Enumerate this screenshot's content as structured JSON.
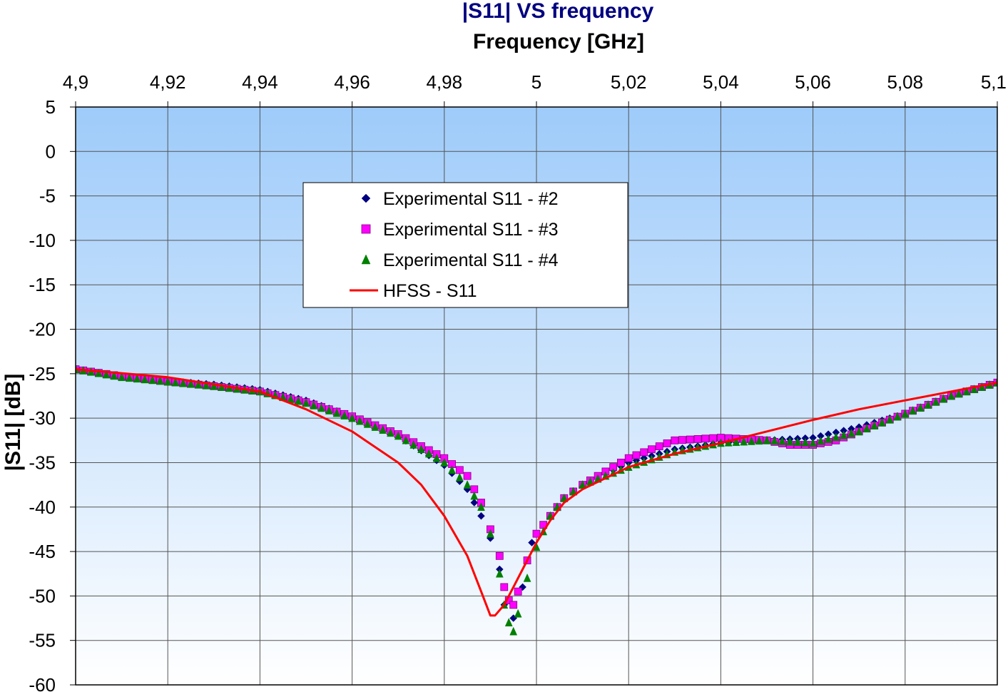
{
  "chart_data": {
    "type": "scatter",
    "title": "|S11| VS frequency",
    "xlabel": "Frequency [GHz]",
    "ylabel": "|S11| [dB]",
    "xlim": [
      4.9,
      5.1
    ],
    "ylim": [
      -60,
      5
    ],
    "x_axis_position": "top",
    "x_ticks": [
      4.9,
      4.92,
      4.94,
      4.96,
      4.98,
      5.0,
      5.02,
      5.04,
      5.06,
      5.08,
      5.1
    ],
    "x_tick_labels": [
      "4,9",
      "4,92",
      "4,94",
      "4,96",
      "4,98",
      "5",
      "5,02",
      "5,04",
      "5,06",
      "5,08",
      "5,1"
    ],
    "y_ticks": [
      5,
      0,
      -5,
      -10,
      -15,
      -20,
      -25,
      -30,
      -35,
      -40,
      -45,
      -50,
      -55,
      -60
    ],
    "y_tick_labels": [
      "5",
      "0",
      "-5",
      "-10",
      "-15",
      "-20",
      "-25",
      "-30",
      "-35",
      "-40",
      "-45",
      "-50",
      "-55",
      "-60"
    ],
    "grid": true,
    "legend_position": "upper-center",
    "background_gradient": [
      "#9ecbfa",
      "#ffffff"
    ],
    "series": [
      {
        "name": "Experimental S11 - #2",
        "marker": "diamond",
        "color": "#000080",
        "points": [
          [
            4.9,
            -24.5
          ],
          [
            4.91,
            -25.3
          ],
          [
            4.92,
            -25.8
          ],
          [
            4.93,
            -26.2
          ],
          [
            4.94,
            -26.8
          ],
          [
            4.95,
            -28.0
          ],
          [
            4.96,
            -29.8
          ],
          [
            4.97,
            -32.0
          ],
          [
            4.98,
            -35.3
          ],
          [
            4.985,
            -38.0
          ],
          [
            4.988,
            -41.0
          ],
          [
            4.99,
            -43.5
          ],
          [
            4.992,
            -47.0
          ],
          [
            4.993,
            -51.0
          ],
          [
            4.995,
            -52.5
          ],
          [
            4.997,
            -49.0
          ],
          [
            4.999,
            -44.0
          ],
          [
            5.0,
            -43.0
          ],
          [
            5.003,
            -41.0
          ],
          [
            5.006,
            -39.0
          ],
          [
            5.01,
            -37.5
          ],
          [
            5.02,
            -35.0
          ],
          [
            5.03,
            -33.5
          ],
          [
            5.04,
            -32.8
          ],
          [
            5.05,
            -32.5
          ],
          [
            5.06,
            -32.2
          ],
          [
            5.07,
            -31.0
          ],
          [
            5.08,
            -29.5
          ],
          [
            5.09,
            -27.5
          ],
          [
            5.1,
            -26.0
          ]
        ]
      },
      {
        "name": "Experimental S11 - #3",
        "marker": "square",
        "color": "#ff00ff",
        "points": [
          [
            4.9,
            -24.5
          ],
          [
            4.91,
            -25.3
          ],
          [
            4.92,
            -25.9
          ],
          [
            4.93,
            -26.4
          ],
          [
            4.94,
            -27.0
          ],
          [
            4.95,
            -28.2
          ],
          [
            4.96,
            -29.8
          ],
          [
            4.97,
            -31.8
          ],
          [
            4.98,
            -34.5
          ],
          [
            4.985,
            -36.5
          ],
          [
            4.988,
            -39.5
          ],
          [
            4.99,
            -42.5
          ],
          [
            4.992,
            -45.5
          ],
          [
            4.993,
            -49.0
          ],
          [
            4.994,
            -50.5
          ],
          [
            4.995,
            -51.0
          ],
          [
            4.996,
            -49.5
          ],
          [
            4.998,
            -46.0
          ],
          [
            5.0,
            -43.0
          ],
          [
            5.003,
            -41.0
          ],
          [
            5.006,
            -39.0
          ],
          [
            5.01,
            -37.5
          ],
          [
            5.02,
            -34.5
          ],
          [
            5.03,
            -32.5
          ],
          [
            5.04,
            -32.2
          ],
          [
            5.05,
            -32.5
          ],
          [
            5.055,
            -33.0
          ],
          [
            5.06,
            -33.0
          ],
          [
            5.065,
            -32.5
          ],
          [
            5.07,
            -31.5
          ],
          [
            5.08,
            -29.5
          ],
          [
            5.09,
            -27.5
          ],
          [
            5.1,
            -26.0
          ]
        ]
      },
      {
        "name": "Experimental S11 - #4",
        "marker": "triangle",
        "color": "#008000",
        "points": [
          [
            4.9,
            -24.5
          ],
          [
            4.91,
            -25.4
          ],
          [
            4.92,
            -25.9
          ],
          [
            4.93,
            -26.4
          ],
          [
            4.94,
            -27.0
          ],
          [
            4.95,
            -28.3
          ],
          [
            4.96,
            -30.0
          ],
          [
            4.97,
            -32.0
          ],
          [
            4.98,
            -35.0
          ],
          [
            4.985,
            -37.5
          ],
          [
            4.988,
            -40.0
          ],
          [
            4.99,
            -43.0
          ],
          [
            4.992,
            -47.5
          ],
          [
            4.993,
            -51.0
          ],
          [
            4.994,
            -53.0
          ],
          [
            4.995,
            -54.0
          ],
          [
            4.996,
            -52.0
          ],
          [
            4.998,
            -48.0
          ],
          [
            5.0,
            -44.5
          ],
          [
            5.003,
            -41.0
          ],
          [
            5.006,
            -39.0
          ],
          [
            5.01,
            -37.5
          ],
          [
            5.02,
            -35.5
          ],
          [
            5.03,
            -33.8
          ],
          [
            5.04,
            -32.8
          ],
          [
            5.05,
            -32.5
          ],
          [
            5.06,
            -32.8
          ],
          [
            5.07,
            -31.5
          ],
          [
            5.08,
            -29.5
          ],
          [
            5.09,
            -27.5
          ],
          [
            5.1,
            -26.0
          ]
        ]
      },
      {
        "name": "HFSS - S11",
        "marker": "line",
        "color": "#ff0000",
        "points": [
          [
            4.9,
            -24.5
          ],
          [
            4.92,
            -25.4
          ],
          [
            4.94,
            -27.0
          ],
          [
            4.95,
            -29.0
          ],
          [
            4.96,
            -31.5
          ],
          [
            4.97,
            -35.0
          ],
          [
            4.975,
            -37.5
          ],
          [
            4.98,
            -41.0
          ],
          [
            4.985,
            -45.5
          ],
          [
            4.988,
            -49.5
          ],
          [
            4.99,
            -52.2
          ],
          [
            4.991,
            -52.2
          ],
          [
            4.993,
            -51.0
          ],
          [
            4.995,
            -49.0
          ],
          [
            4.997,
            -47.0
          ],
          [
            5.0,
            -44.0
          ],
          [
            5.003,
            -41.5
          ],
          [
            5.006,
            -39.5
          ],
          [
            5.01,
            -38.0
          ],
          [
            5.02,
            -35.5
          ],
          [
            5.03,
            -34.0
          ],
          [
            5.04,
            -32.8
          ],
          [
            5.05,
            -31.5
          ],
          [
            5.06,
            -30.2
          ],
          [
            5.07,
            -29.0
          ],
          [
            5.08,
            -28.0
          ],
          [
            5.09,
            -27.0
          ],
          [
            5.1,
            -26.0
          ]
        ]
      }
    ]
  }
}
